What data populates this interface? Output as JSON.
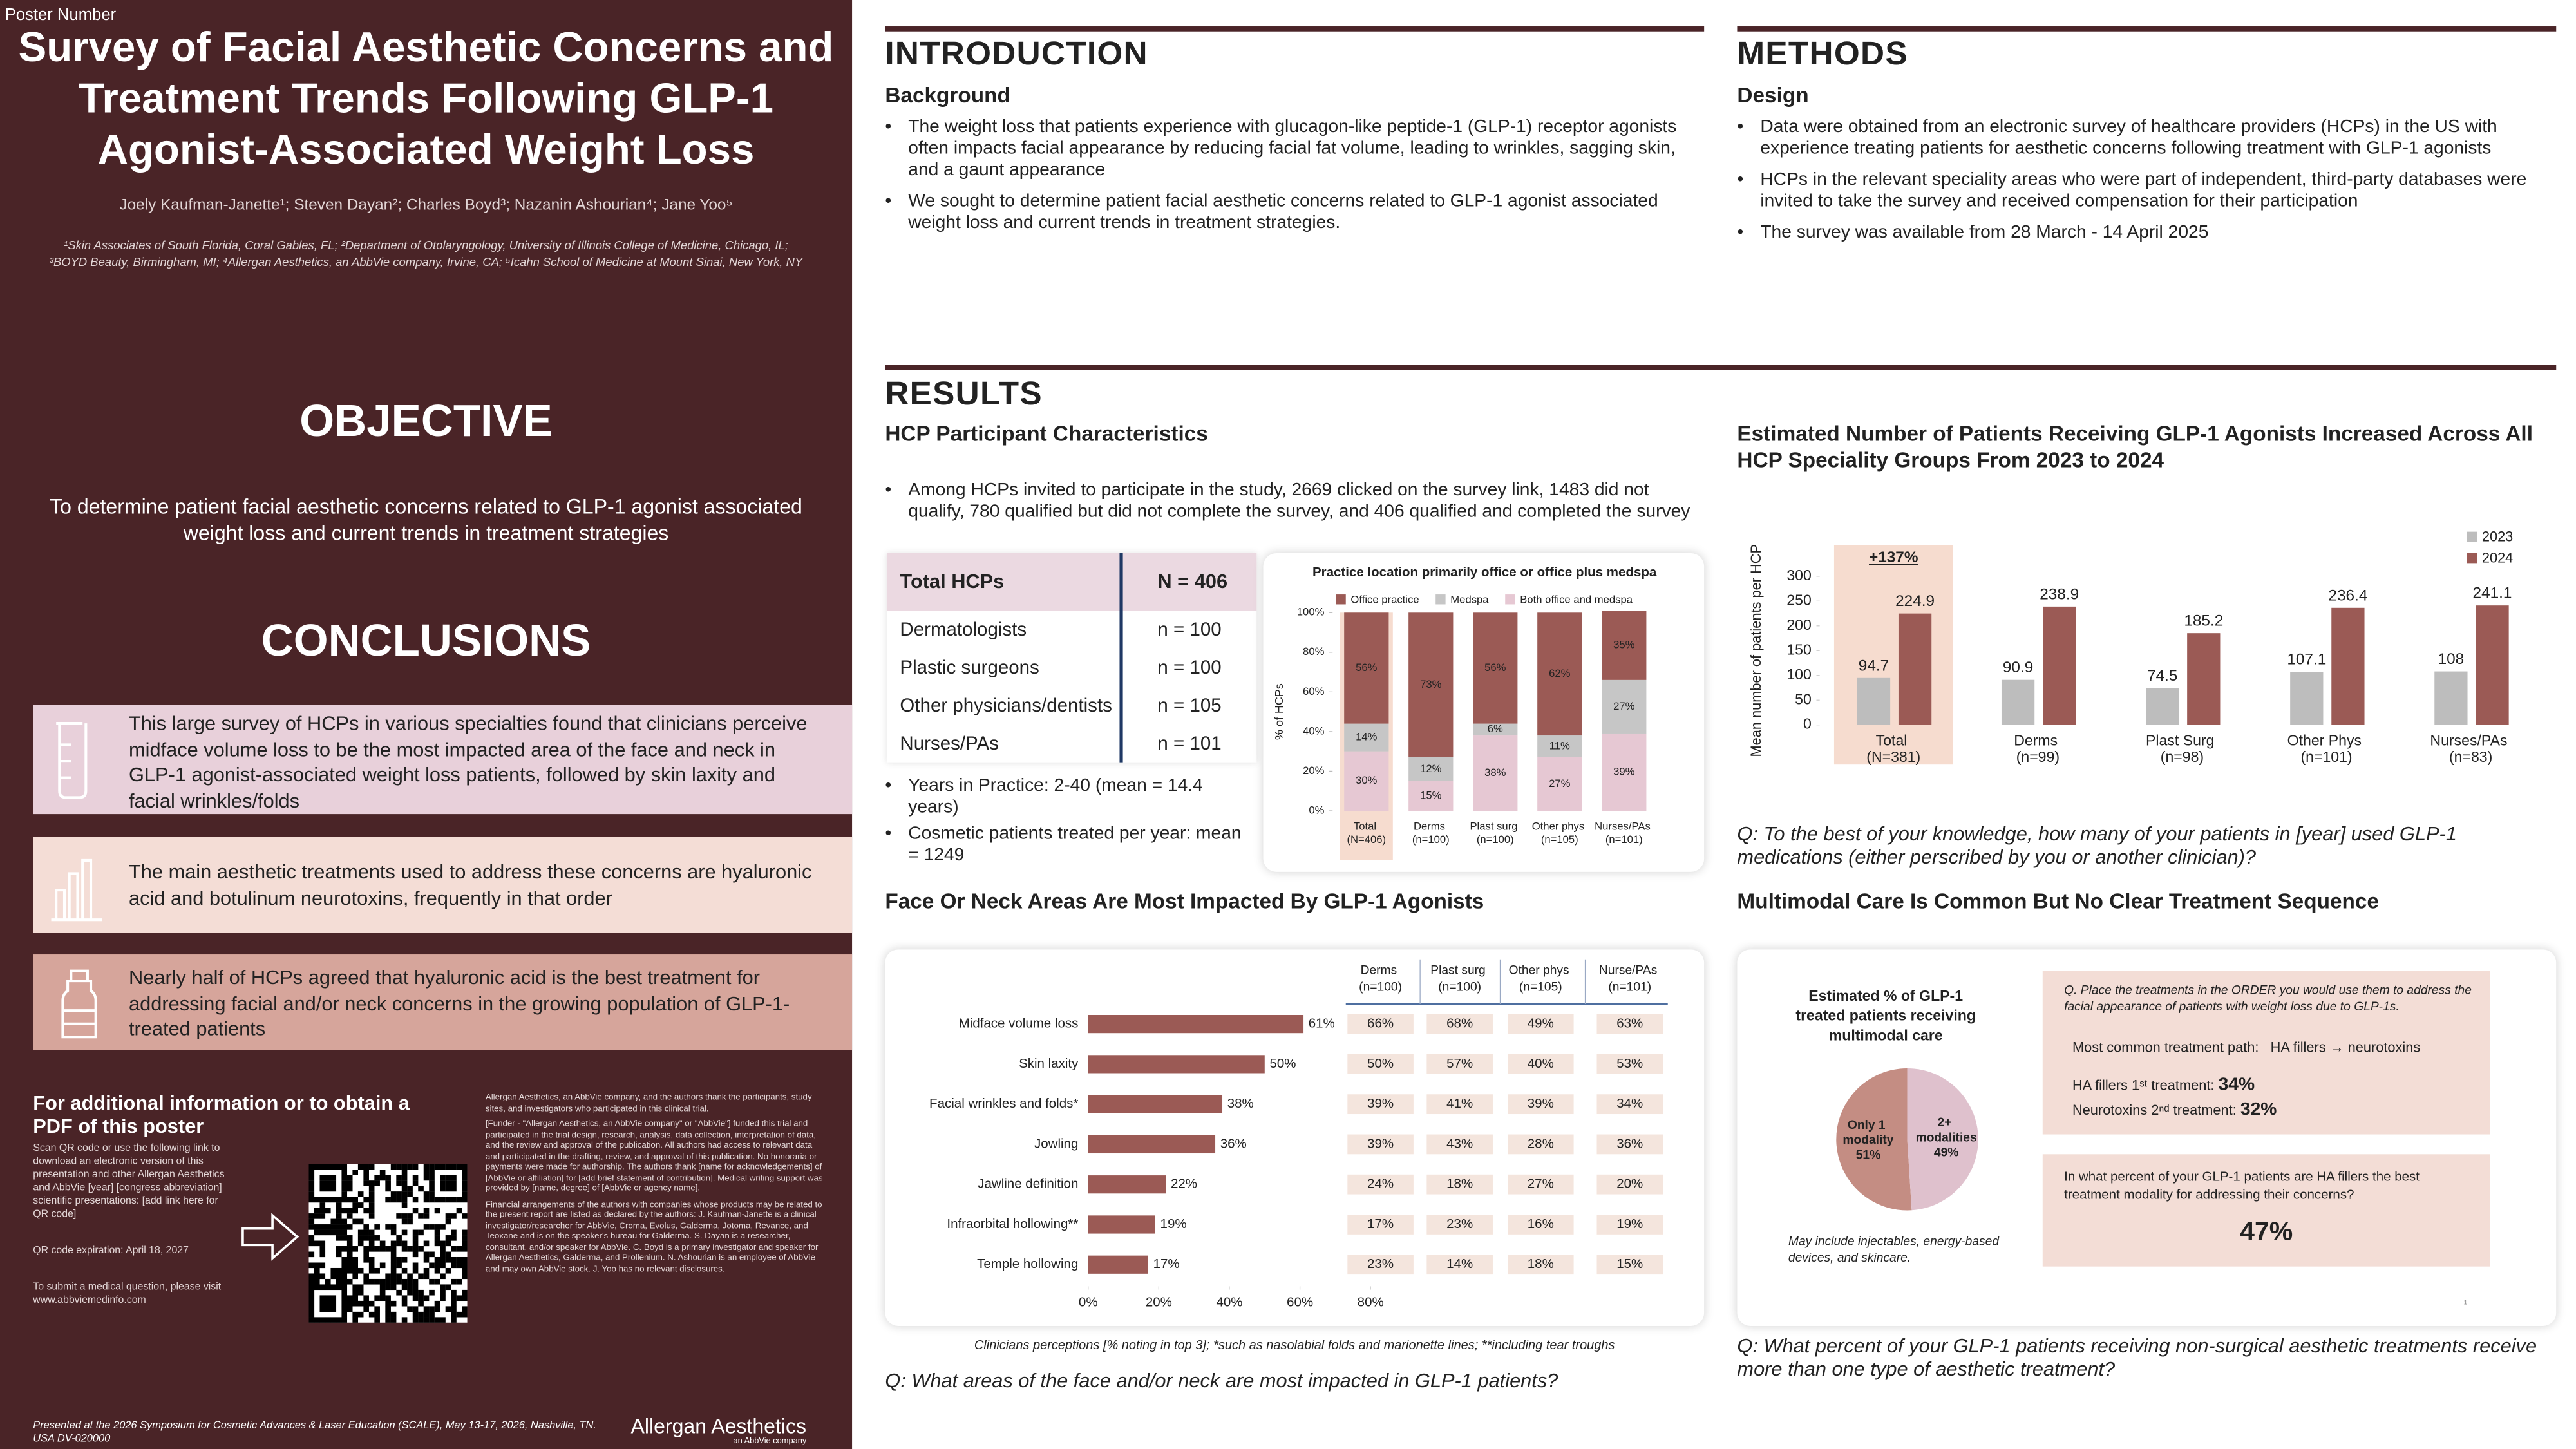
{
  "poster_number": "Poster Number",
  "title": "Survey of Facial Aesthetic Concerns and Treatment Trends Following GLP-1 Agonist-Associated Weight Loss",
  "authors": "Joely Kaufman-Janette¹; Steven Dayan²; Charles Boyd³; Nazanin Ashourian⁴; Jane Yoo⁵",
  "affiliations": "¹Skin Associates of South Florida, Coral Gables, FL; ²Department of Otolaryngology, University of Illinois College of Medicine, Chicago, IL; ³BOYD Beauty, Birmingham, MI; ⁴Allergan Aesthetics, an AbbVie company, Irvine, CA; ⁵Icahn School of Medicine at Mount Sinai, New York, NY",
  "objective": {
    "heading": "OBJECTIVE",
    "text": "To determine patient facial aesthetic concerns related to GLP-1 agonist associated weight loss and current trends in treatment strategies"
  },
  "conclusions": {
    "heading": "CONCLUSIONS",
    "items": [
      "This large survey of HCPs in various specialties found that clinicians perceive midface volume loss to be the most impacted area of the face and neck in GLP-1 agonist-associated weight loss patients, followed by skin laxity and facial wrinkles/folds",
      "The main aesthetic treatments used to address these concerns are hyaluronic acid and botulinum neurotoxins, frequently in that order",
      "Nearly half of HCPs agreed that hyaluronic acid is the best treatment for addressing facial and/or neck concerns in the growing population of GLP-1-treated patients"
    ]
  },
  "info": {
    "heading": "For additional information or to obtain a PDF of this poster",
    "text": "Scan QR code or use the following link to download an electronic version of this presentation and other Allergan Aesthetics and AbbVie [year] [congress abbreviation] scientific presentations: [add link here for QR code]",
    "expiration": "QR code expiration: April 18, 2027",
    "medical_question": "To submit a medical question, please visit www.abbviemedinfo.com"
  },
  "acknowledgments": [
    "Allergan Aesthetics, an AbbVie company, and the authors thank the participants, study sites, and investigators who participated in this clinical trial.",
    "[Funder - \"Allergan Aesthetics, an AbbVie company\" or \"AbbVie\"] funded this trial and participated in the trial design, research, analysis, data collection, interpretation of data, and the review and approval of the publication. All authors had access to relevant data and participated in the drafting, review, and approval of this publication. No honoraria or payments were made for authorship. The authors thank [name for acknowledgements] of [AbbVie or affiliation] for [add brief statement of contribution]. Medical writing support was provided by [name, degree] of [AbbVie or agency name].",
    "Financial arrangements of the authors with companies whose products may be related to the present report are listed as declared by the authors: J. Kaufman-Janette is a clinical investigator/researcher for AbbVie, Croma, Evolus, Galderma, Jotoma, Revance, and Teoxane and is on the speaker's bureau for Galderma. S. Dayan is a researcher, consultant, and/or speaker for AbbVie. C. Boyd is a primary investigator and speaker for Allergan Aesthetics, Galderma, and Prollenium. N. Ashourian is an employee of AbbVie and may own AbbVie stock. J. Yoo has no relevant disclosures."
  ],
  "footer": {
    "presented": "Presented at the 2026 Symposium for Cosmetic Advances & Laser Education (SCALE), May 13-17, 2026, Nashville, TN. USA DV-020000",
    "logo": "Allergan Aesthetics",
    "logo_sub": "an AbbVie company"
  },
  "introduction": {
    "heading": "INTRODUCTION",
    "subheading": "Background",
    "bullets": [
      "The weight loss that patients experience with glucagon-like peptide-1 (GLP-1) receptor agonists often impacts facial appearance by reducing facial fat volume, leading to wrinkles, sagging skin, and a gaunt appearance",
      "We sought to determine patient facial aesthetic concerns related to GLP-1 agonist associated weight loss and current trends in treatment strategies."
    ]
  },
  "methods": {
    "heading": "METHODS",
    "subheading": "Design",
    "bullets": [
      "Data were obtained from an electronic survey of healthcare providers (HCPs) in the US with experience treating patients for aesthetic concerns following treatment with GLP-1 agonists",
      "HCPs in the relevant speciality areas who were part of independent, third-party databases were invited to take the survey and received compensation for their participation",
      "The survey was available from 28 March - 14 April 2025"
    ]
  },
  "results": {
    "heading": "RESULTS",
    "hcp": {
      "heading": "HCP Participant Characteristics",
      "bullet": "Among HCPs invited to participate in the study, 2669 clicked on the survey link, 1483 did not qualify, 780 qualified but did not complete the survey, and 406 qualified and completed the survey",
      "table": {
        "header": [
          "Total HCPs",
          "N = 406"
        ],
        "rows": [
          [
            "Dermatologists",
            "n = 100"
          ],
          [
            "Plastic surgeons",
            "n = 100"
          ],
          [
            "Other physicians/dentists",
            "n = 105"
          ],
          [
            "Nurses/PAs",
            "n = 101"
          ]
        ]
      },
      "bullets": [
        "Years in Practice: 2-40 (mean = 14.4 years)",
        "Cosmetic patients treated per year: mean = 1249"
      ]
    },
    "patients": {
      "heading": "Estimated Number of Patients Receiving GLP-1 Agonists Increased Across All HCP Speciality Groups From 2023 to 2024",
      "question": "Q: To the best of your knowledge, how many of your patients in [year] used GLP-1 medications (either perscribed by you or another clinician)?"
    },
    "face": {
      "heading": "Face Or Neck Areas Are Most Impacted By GLP-1 Agonists",
      "table": {
        "columns": [
          "Derms (n=100)",
          "Plast surg (n=100)",
          "Other phys (n=105)",
          "Nurse/PAs (n=101)"
        ],
        "rows": [
          [
            "66%",
            "68%",
            "49%",
            "63%"
          ],
          [
            "50%",
            "57%",
            "40%",
            "53%"
          ],
          [
            "39%",
            "41%",
            "39%",
            "34%"
          ],
          [
            "39%",
            "43%",
            "28%",
            "36%"
          ],
          [
            "24%",
            "18%",
            "27%",
            "20%"
          ],
          [
            "17%",
            "23%",
            "16%",
            "19%"
          ],
          [
            "23%",
            "14%",
            "18%",
            "15%"
          ]
        ]
      },
      "footnote": "Clinicians perceptions [% noting in top 3]; *such as nasolabial folds and marionette lines; **including tear troughs",
      "question": "Q: What areas of the face and/or neck are most impacted in GLP-1 patients?"
    },
    "multimodal": {
      "heading": "Multimodal Care Is Common But No Clear Treatment Sequence",
      "note": "May include injectables, energy-based devices, and skincare.",
      "order_question": "Q. Place the treatments in the ORDER you would use them to address the facial appearance of patients with weight loss due to GLP-1s.",
      "path_label": "Most common treatment path:",
      "path": "HA fillers → neurotoxins",
      "first_label": "HA fillers 1ˢᵗ treatment:",
      "first_value": "34%",
      "second_label": "Neurotoxins 2ⁿᵈ treatment:",
      "second_value": "32%",
      "best_question": "In what percent of your GLP-1 patients are HA fillers the best treatment modality for addressing their concerns?",
      "best_value": "47%",
      "footnote_mark": "1",
      "question": "Q: What percent of your GLP-1 patients receiving non-surgical aesthetic treatments receive more than one type of aesthetic treatment?"
    }
  },
  "chart_data": [
    {
      "type": "stacked_bar",
      "title": "Practice location primarily office or office plus medspa",
      "y_label": "% of HCPs",
      "categories": [
        "Total (N=406)",
        "Derms (n=100)",
        "Plast surg (n=100)",
        "Other phys (n=105)",
        "Nurses/PAs (n=101)"
      ],
      "series": [
        {
          "name": "Office practice",
          "color": "#9b5a55",
          "values": [
            56,
            73,
            56,
            62,
            35
          ],
          "value_labels": [
            "56%",
            "73%",
            "56%",
            "62%",
            "35%"
          ]
        },
        {
          "name": "Medspa",
          "color": "#c6c6c6",
          "values": [
            14,
            12,
            6,
            11,
            27
          ],
          "value_labels": [
            "14%",
            "12%",
            "6%",
            "11%",
            "27%"
          ]
        },
        {
          "name": "Both office and medspa",
          "color": "#e6c8d3",
          "values": [
            30,
            15,
            38,
            27,
            39
          ],
          "value_labels": [
            "30%",
            "15%",
            "38%",
            "27%",
            "39%"
          ]
        }
      ],
      "ylim": [
        0,
        100
      ],
      "yticks": [
        {
          "value": 0,
          "label": "0%"
        },
        {
          "value": 20,
          "label": "20%"
        },
        {
          "value": 40,
          "label": "40%"
        },
        {
          "value": 60,
          "label": "60%"
        },
        {
          "value": 80,
          "label": "80%"
        },
        {
          "value": 100,
          "label": "100%"
        }
      ],
      "legend": "top"
    },
    {
      "type": "bar",
      "y_label": "Mean number of patients per HCP",
      "annotation": "+137%",
      "categories": [
        "Total (N=381)",
        "Derms (n=99)",
        "Plast Surg (n=98)",
        "Other Phys (n=101)",
        "Nurses/PAs (n=83)"
      ],
      "series": [
        {
          "name": "2023",
          "color": "#bdbdbd",
          "values": [
            94.7,
            90.9,
            74.5,
            107.1,
            108
          ]
        },
        {
          "name": "2024",
          "color": "#9b5a55",
          "values": [
            224.9,
            238.9,
            185.2,
            236.4,
            241.1
          ]
        }
      ],
      "ylim": [
        0,
        300
      ],
      "yticks": [
        0,
        50,
        100,
        150,
        200,
        250,
        300
      ],
      "legend": "top-right"
    },
    {
      "type": "hbar",
      "categories": [
        "Midface volume loss",
        "Skin laxity",
        "Facial wrinkles and folds*",
        "Jowling",
        "Jawline definition",
        "Infraorbital hollowing**",
        "Temple hollowing"
      ],
      "values": [
        61,
        50,
        38,
        36,
        22,
        19,
        17
      ],
      "value_labels": [
        "61%",
        "50%",
        "38%",
        "36%",
        "22%",
        "19%",
        "17%"
      ],
      "color": "#9b5a55",
      "xlim": [
        0,
        80
      ],
      "xticks": [
        {
          "value": 0,
          "label": "0%"
        },
        {
          "value": 20,
          "label": "20%"
        },
        {
          "value": 40,
          "label": "40%"
        },
        {
          "value": 60,
          "label": "60%"
        },
        {
          "value": 80,
          "label": "80%"
        }
      ]
    },
    {
      "type": "pie",
      "title": "Estimated % of GLP-1 treated patients receiving multimodal care",
      "categories": [
        "Only 1 modality",
        "2+ modalities"
      ],
      "values": [
        51,
        49
      ],
      "value_labels": [
        "51%",
        "49%"
      ],
      "colors": [
        "#c48d83",
        "#dfc1cd"
      ]
    }
  ]
}
